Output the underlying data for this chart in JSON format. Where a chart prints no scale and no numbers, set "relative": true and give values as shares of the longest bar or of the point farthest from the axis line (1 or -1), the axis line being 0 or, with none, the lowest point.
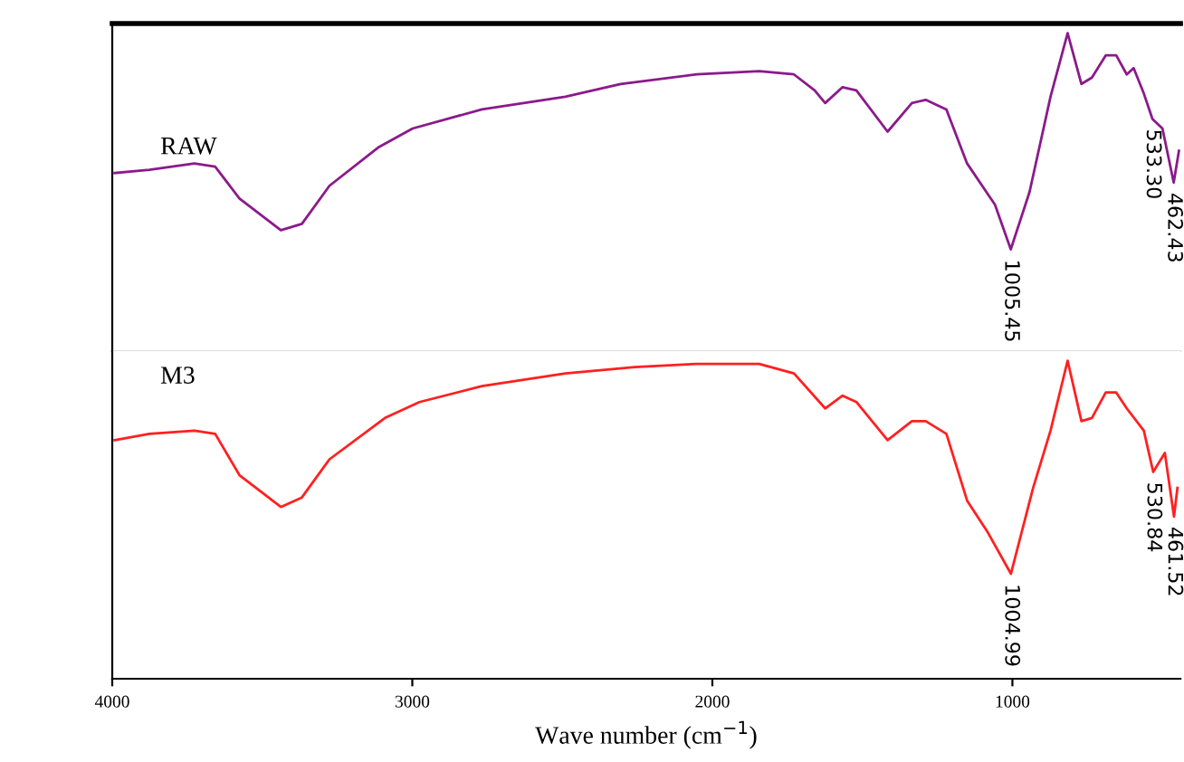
{
  "chart_data": [
    {
      "type": "line",
      "relative": true,
      "xlim": [
        4000,
        440
      ],
      "tick_labels": false,
      "grid": false,
      "legend": false,
      "marker": "none",
      "line_style": "solid",
      "series": [
        {
          "name": "RAW",
          "color": "#8b1a8b",
          "x": [
            3992,
            3876,
            3726,
            3657,
            3576,
            3438,
            3368,
            3276,
            3114,
            2999,
            2768,
            2490,
            2306,
            2052,
            1844,
            1728,
            1659,
            1624,
            1566,
            1520,
            1416,
            1335,
            1289,
            1220,
            1151,
            1058,
            1005.45,
            943,
            873,
            816,
            770,
            735,
            689,
            654,
            619,
            596,
            562,
            533.3,
            500,
            462.43,
            445
          ],
          "values": [
            0.56,
            0.57,
            0.59,
            0.58,
            0.48,
            0.38,
            0.4,
            0.52,
            0.64,
            0.7,
            0.76,
            0.8,
            0.84,
            0.87,
            0.88,
            0.87,
            0.82,
            0.78,
            0.83,
            0.82,
            0.69,
            0.78,
            0.79,
            0.76,
            0.59,
            0.46,
            0.32,
            0.5,
            0.8,
            1,
            0.84,
            0.86,
            0.93,
            0.93,
            0.87,
            0.89,
            0.81,
            0.73,
            0.7,
            0.53,
            0.63
          ]
        }
      ],
      "annotations": [
        {
          "text": "1005.45",
          "x": 1005.45,
          "y": 0.32
        },
        {
          "text": "533.30",
          "x": 533.3,
          "y": 0.73
        },
        {
          "text": "462.43",
          "x": 462.43,
          "y": 0.53
        }
      ]
    },
    {
      "type": "line",
      "relative": true,
      "xlim": [
        4000,
        440
      ],
      "xticks": [
        4000,
        3000,
        2000,
        1000
      ],
      "tick_labels": "x",
      "xlabel": "Wave number (cm$^{−1}$)",
      "grid": false,
      "legend": false,
      "marker": "none",
      "line_style": "solid",
      "series": [
        {
          "name": "M3",
          "color": "#ff2020",
          "x": [
            3992,
            3876,
            3726,
            3657,
            3576,
            3438,
            3368,
            3276,
            3091,
            2976,
            2768,
            2490,
            2259,
            2052,
            1844,
            1728,
            1624,
            1566,
            1520,
            1416,
            1335,
            1289,
            1220,
            1151,
            1082,
            1004.99,
            931,
            873,
            816,
            770,
            735,
            689,
            654,
            619,
            562,
            530.84,
            492,
            461.52,
            450
          ],
          "values": [
            0.75,
            0.77,
            0.78,
            0.77,
            0.64,
            0.54,
            0.57,
            0.69,
            0.82,
            0.87,
            0.92,
            0.96,
            0.98,
            0.99,
            0.99,
            0.96,
            0.85,
            0.89,
            0.87,
            0.75,
            0.81,
            0.81,
            0.77,
            0.56,
            0.46,
            0.33,
            0.6,
            0.78,
            1,
            0.81,
            0.82,
            0.9,
            0.9,
            0.85,
            0.78,
            0.65,
            0.71,
            0.51,
            0.6
          ]
        }
      ],
      "annotations": [
        {
          "text": "1004.99",
          "x": 1004.99,
          "y": 0.33
        },
        {
          "text": "530.84",
          "x": 530.84,
          "y": 0.65
        },
        {
          "text": "461.52",
          "x": 461.52,
          "y": 0.51
        }
      ]
    }
  ]
}
